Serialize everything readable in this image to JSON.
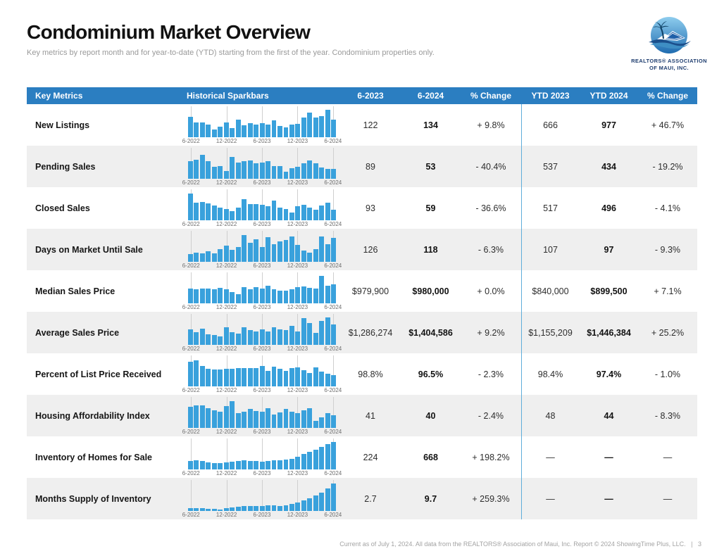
{
  "page": {
    "title": "Condominium Market Overview",
    "subtitle": "Key metrics by report month and for year-to-date (YTD) starting from the first of the year. Condominium properties only.",
    "footer_text": "Current as of July 1, 2024. All data from the REALTORS® Association of Maui, Inc. Report © 2024 ShowingTime Plus, LLC.",
    "footer_separator": "|",
    "footer_page_number": "3"
  },
  "logo": {
    "line1": "REALTORS® ASSOCIATION",
    "line2": "OF MAUI, INC."
  },
  "colors": {
    "header_blue": "#2b7ec1",
    "spark_bar_blue": "#39a1dc",
    "divider_blue": "#5fadda",
    "alt_row_gray": "#efefef",
    "logo_navy": "#1d3c6e"
  },
  "table": {
    "headers": [
      "Key Metrics",
      "Historical Sparkbars",
      "6-2023",
      "6-2024",
      "% Change",
      "YTD 2023",
      "YTD 2024",
      "% Change"
    ],
    "spark_axis_labels": [
      "6-2022",
      "12-2022",
      "6-2023",
      "12-2023",
      "6-2024"
    ],
    "spark_unit": "relative_height_percent",
    "rows": [
      {
        "label": "New Listings",
        "values": [
          "122",
          "134",
          "+ 9.8%",
          "666",
          "977",
          "+ 46.7%"
        ],
        "spark": [
          72,
          52,
          52,
          46,
          26,
          36,
          52,
          32,
          62,
          42,
          50,
          46,
          50,
          46,
          60,
          40,
          34,
          44,
          48,
          70,
          88,
          70,
          76,
          100,
          64
        ]
      },
      {
        "label": "Pending Sales",
        "values": [
          "89",
          "53",
          "- 40.4%",
          "537",
          "434",
          "- 19.2%"
        ],
        "spark": [
          62,
          68,
          85,
          62,
          42,
          46,
          28,
          78,
          58,
          62,
          66,
          54,
          58,
          64,
          44,
          44,
          24,
          36,
          42,
          56,
          66,
          54,
          40,
          34,
          34
        ]
      },
      {
        "label": "Closed Sales",
        "values": [
          "93",
          "59",
          "- 36.6%",
          "517",
          "496",
          "- 4.1%"
        ],
        "spark": [
          95,
          62,
          66,
          60,
          52,
          46,
          40,
          32,
          46,
          76,
          58,
          58,
          54,
          50,
          70,
          44,
          40,
          28,
          50,
          56,
          44,
          36,
          52,
          62,
          38
        ]
      },
      {
        "label": "Days on Market Until Sale",
        "values": [
          "126",
          "118",
          "- 6.3%",
          "107",
          "97",
          "- 9.3%"
        ],
        "spark": [
          28,
          32,
          30,
          36,
          30,
          44,
          58,
          42,
          52,
          95,
          68,
          80,
          52,
          88,
          64,
          72,
          78,
          92,
          60,
          40,
          32,
          46,
          90,
          62,
          85
        ]
      },
      {
        "label": "Median Sales Price",
        "values": [
          "$979,900",
          "$980,000",
          "+ 0.0%",
          "$840,000",
          "$899,500",
          "+ 7.1%"
        ],
        "spark": [
          52,
          50,
          52,
          52,
          50,
          54,
          50,
          40,
          32,
          58,
          50,
          58,
          52,
          62,
          50,
          44,
          46,
          50,
          58,
          60,
          56,
          52,
          100,
          62,
          68
        ]
      },
      {
        "label": "Average Sales Price",
        "values": [
          "$1,286,274",
          "$1,404,586",
          "+ 9.2%",
          "$1,155,209",
          "$1,446,384",
          "+ 25.2%"
        ],
        "spark": [
          56,
          46,
          58,
          38,
          34,
          30,
          62,
          46,
          40,
          62,
          52,
          48,
          56,
          48,
          62,
          56,
          52,
          68,
          48,
          95,
          78,
          42,
          85,
          100,
          72
        ]
      },
      {
        "label": "Percent of List Price Received",
        "values": [
          "98.8%",
          "96.5%",
          "- 2.3%",
          "98.4%",
          "97.4%",
          "- 1.0%"
        ],
        "spark": [
          88,
          94,
          72,
          62,
          60,
          60,
          62,
          64,
          66,
          66,
          66,
          66,
          74,
          56,
          70,
          64,
          56,
          66,
          68,
          58,
          48,
          68,
          52,
          44,
          40
        ]
      },
      {
        "label": "Housing Affordability Index",
        "values": [
          "41",
          "40",
          "- 2.4%",
          "48",
          "44",
          "- 8.3%"
        ],
        "spark": [
          75,
          82,
          80,
          70,
          62,
          58,
          78,
          95,
          52,
          58,
          68,
          60,
          58,
          70,
          48,
          55,
          68,
          58,
          52,
          62,
          70,
          25,
          38,
          52,
          45
        ]
      },
      {
        "label": "Inventory of Homes for Sale",
        "values": [
          "224",
          "668",
          "+ 198.2%",
          "—",
          "—",
          "—"
        ],
        "spark": [
          30,
          32,
          30,
          25,
          22,
          22,
          25,
          28,
          30,
          32,
          30,
          30,
          28,
          30,
          32,
          32,
          35,
          38,
          45,
          55,
          62,
          70,
          80,
          92,
          100
        ]
      },
      {
        "label": "Months Supply of Inventory",
        "values": [
          "2.7",
          "9.7",
          "+ 259.3%",
          "—",
          "—",
          "—"
        ],
        "spark": [
          9,
          9,
          9,
          7,
          6,
          5,
          9,
          12,
          14,
          16,
          17,
          17,
          17,
          18,
          18,
          16,
          20,
          24,
          30,
          38,
          46,
          55,
          66,
          82,
          100
        ]
      }
    ]
  },
  "chart_data": {
    "type": "bar",
    "title": "Historical Sparkbars (per metric, 6-2022 through 6-2024, monthly)",
    "x_tick_labels": [
      "6-2022",
      "12-2022",
      "6-2023",
      "12-2023",
      "6-2024"
    ],
    "note": "values are relative bar heights in percent; see table.rows[].spark"
  }
}
